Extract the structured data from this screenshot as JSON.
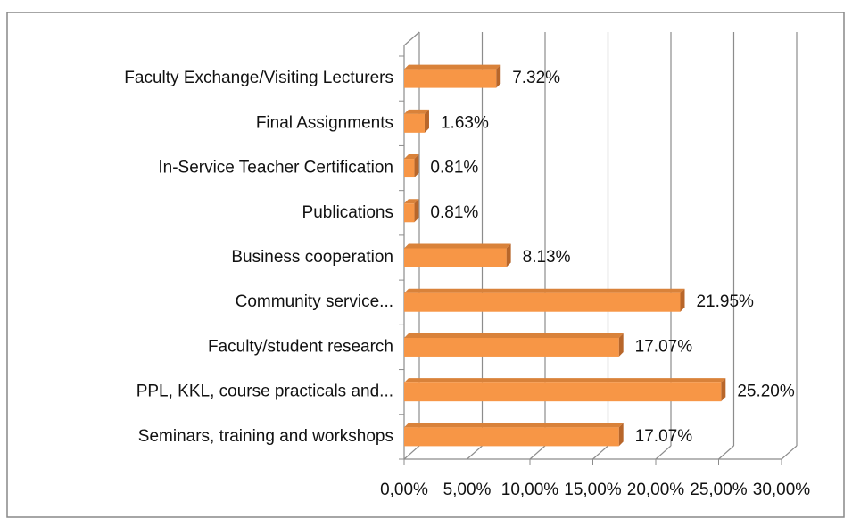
{
  "chart_data": {
    "type": "bar",
    "orientation": "horizontal",
    "categories": [
      "Faculty Exchange/Visiting Lecturers",
      "Final Assignments",
      "In-Service Teacher Certification",
      "Publications",
      "Business cooperation",
      "Community service...",
      "Faculty/student research",
      "PPL, KKL, course practicals and...",
      "Seminars, training and workshops"
    ],
    "values": [
      7.32,
      1.63,
      0.81,
      0.81,
      8.13,
      21.95,
      17.07,
      25.2,
      17.07
    ],
    "value_labels": [
      "7.32%",
      "1.63%",
      "0.81%",
      "0.81%",
      "8.13%",
      "21.95%",
      "17.07%",
      "25.20%",
      "17.07%"
    ],
    "color": "#f79646",
    "xlim": [
      0,
      30
    ],
    "xticks": [
      {
        "value": 0,
        "label": "0,00%"
      },
      {
        "value": 5,
        "label": "5,00%"
      },
      {
        "value": 10,
        "label": "10,00%"
      },
      {
        "value": 15,
        "label": "15,00%"
      },
      {
        "value": 20,
        "label": "20,00%"
      },
      {
        "value": 25,
        "label": "25,00%"
      },
      {
        "value": 30,
        "label": "30,00%"
      }
    ],
    "grid": true
  }
}
